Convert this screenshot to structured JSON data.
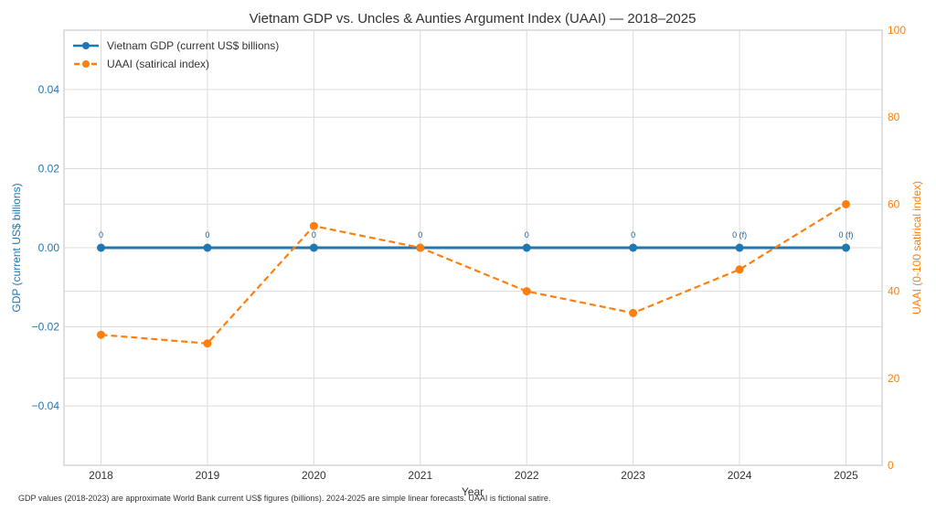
{
  "chart_data": {
    "type": "line",
    "title": "Vietnam GDP vs. Uncles & Aunties Argument Index (UAAI) — 2018–2025",
    "xlabel": "Year",
    "ylabel_left": "GDP (current US$ billions)",
    "ylabel_right": "UAAI (0-100 satirical index)",
    "categories": [
      "2018",
      "2019",
      "2020",
      "2021",
      "2022",
      "2023",
      "2024",
      "2025"
    ],
    "ylim_left": [
      -0.055,
      0.055
    ],
    "ylim_right": [
      0,
      100
    ],
    "yticks_left": [
      "0.04",
      "0.02",
      "0.00",
      "−0.02",
      "−0.04"
    ],
    "yticks_left_values": [
      0.04,
      0.02,
      0.0,
      -0.02,
      -0.04
    ],
    "yticks_right": [
      "100",
      "80",
      "60",
      "40",
      "20",
      "0"
    ],
    "yticks_right_values": [
      100,
      80,
      60,
      40,
      20,
      0
    ],
    "grid": true,
    "legend_position": "top-left",
    "series": [
      {
        "name": "Vietnam GDP (current US$ billions)",
        "axis": "left",
        "color": "#1f77b4",
        "style": "solid",
        "marker": "circle",
        "values": [
          0,
          0,
          0,
          0,
          0,
          0,
          0,
          0
        ],
        "data_labels": [
          "0",
          "0",
          "0",
          "0",
          "0",
          "0",
          "0 (f)",
          "0 (f)"
        ]
      },
      {
        "name": "UAAI (satirical index)",
        "axis": "right",
        "color": "#ff7f0e",
        "style": "dashed",
        "marker": "circle",
        "values": [
          30,
          28,
          55,
          50,
          40,
          35,
          45,
          60
        ]
      }
    ],
    "footnote": "GDP values (2018-2023) are approximate World Bank current US$ figures (billions). 2024-2025 are simple linear forecasts. UAAI is fictional satire."
  }
}
